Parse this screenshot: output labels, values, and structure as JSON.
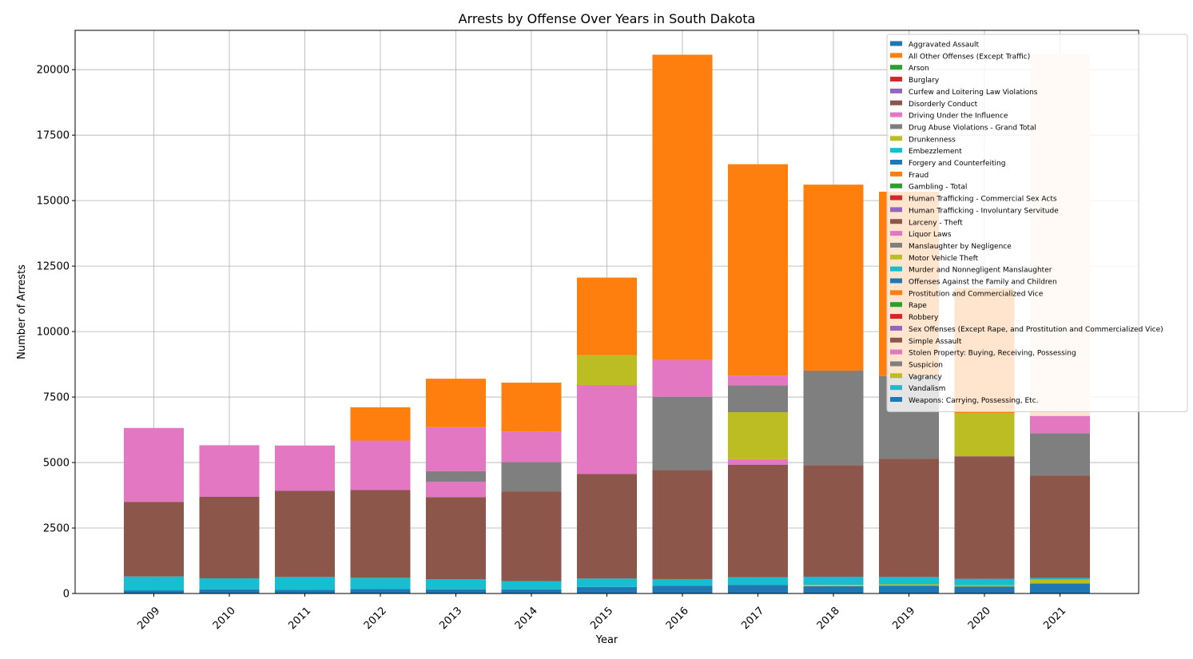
{
  "chart_data": {
    "type": "bar",
    "stacked": true,
    "title": "Arrests by Offense Over Years in South Dakota",
    "xlabel": "Year",
    "ylabel": "Number of Arrests",
    "ylim": [
      0,
      21500
    ],
    "yticks": [
      0,
      2500,
      5000,
      7500,
      10000,
      12500,
      15000,
      17500,
      20000
    ],
    "grid": true,
    "legend_position": "top-right",
    "categories": [
      "2009",
      "2010",
      "2011",
      "2012",
      "2013",
      "2014",
      "2015",
      "2016",
      "2017",
      "2018",
      "2019",
      "2020",
      "2021"
    ],
    "legend": [
      {
        "name": "Aggravated Assault",
        "color": "#1f77b4"
      },
      {
        "name": "All Other Offenses (Except Traffic)",
        "color": "#ff7f0e"
      },
      {
        "name": "Arson",
        "color": "#2ca02c"
      },
      {
        "name": "Burglary",
        "color": "#d62728"
      },
      {
        "name": "Curfew and Loitering Law Violations",
        "color": "#9467bd"
      },
      {
        "name": "Disorderly Conduct",
        "color": "#8c564b"
      },
      {
        "name": "Driving Under the Influence",
        "color": "#e377c2"
      },
      {
        "name": "Drug Abuse Violations - Grand Total",
        "color": "#7f7f7f"
      },
      {
        "name": "Drunkenness",
        "color": "#bcbd22"
      },
      {
        "name": "Embezzlement",
        "color": "#17becf"
      },
      {
        "name": "Forgery and Counterfeiting",
        "color": "#1f77b4"
      },
      {
        "name": "Fraud",
        "color": "#ff7f0e"
      },
      {
        "name": "Gambling - Total",
        "color": "#2ca02c"
      },
      {
        "name": "Human Trafficking - Commercial Sex Acts",
        "color": "#d62728"
      },
      {
        "name": "Human Trafficking - Involuntary Servitude",
        "color": "#9467bd"
      },
      {
        "name": "Larceny - Theft",
        "color": "#8c564b"
      },
      {
        "name": "Liquor Laws",
        "color": "#e377c2"
      },
      {
        "name": "Manslaughter by Negligence",
        "color": "#7f7f7f"
      },
      {
        "name": "Motor Vehicle Theft",
        "color": "#bcbd22"
      },
      {
        "name": "Murder and Nonnegligent Manslaughter",
        "color": "#17becf"
      },
      {
        "name": "Offenses Against the Family and Children",
        "color": "#1f77b4"
      },
      {
        "name": "Prostitution and Commercialized Vice",
        "color": "#ff7f0e"
      },
      {
        "name": "Rape",
        "color": "#2ca02c"
      },
      {
        "name": "Robbery",
        "color": "#d62728"
      },
      {
        "name": "Sex Offenses (Except Rape, and Prostitution and Commercialized Vice)",
        "color": "#9467bd"
      },
      {
        "name": "Simple Assault",
        "color": "#8c564b"
      },
      {
        "name": "Stolen Property: Buying, Receiving, Possessing",
        "color": "#e377c2"
      },
      {
        "name": "Suspicion",
        "color": "#7f7f7f"
      },
      {
        "name": "Vagrancy",
        "color": "#bcbd22"
      },
      {
        "name": "Vandalism",
        "color": "#17becf"
      },
      {
        "name": "Weapons: Carrying, Possessing, Etc.",
        "color": "#1f77b4"
      }
    ],
    "visible_segments": [
      {
        "series": "Aggravated Assault",
        "color": "#1f77b4",
        "values": [
          120,
          160,
          140,
          170,
          160,
          160,
          250,
          300,
          330,
          280,
          300,
          270,
          380
        ]
      },
      {
        "series": "Drunkenness",
        "color": "#bcbd22",
        "values": [
          0,
          0,
          0,
          0,
          0,
          0,
          0,
          0,
          0,
          50,
          50,
          50,
          150
        ]
      },
      {
        "series": "Embezzlement",
        "color": "#17becf",
        "values": [
          530,
          420,
          490,
          430,
          380,
          310,
          320,
          250,
          290,
          310,
          280,
          240,
          60
        ]
      },
      {
        "series": "Disorderly Conduct",
        "color": "#8c564b",
        "values": [
          2850,
          3110,
          3290,
          3350,
          3140,
          3430,
          3990,
          4160,
          4290,
          4260,
          4520,
          4680,
          3910
        ]
      },
      {
        "series": "Driving Under the Influence",
        "color": "#e377c2",
        "values": [
          2820,
          1970,
          1730,
          1890,
          590,
          0,
          3400,
          0,
          220,
          0,
          0,
          0,
          0
        ]
      },
      {
        "series": "Drug Abuse Violations - Grand Total",
        "color": "#7f7f7f",
        "values": [
          0,
          0,
          0,
          0,
          400,
          1120,
          0,
          2800,
          0,
          0,
          0,
          0,
          0
        ]
      },
      {
        "series": "Liquor Laws",
        "color": "#e377c2",
        "values": [
          0,
          0,
          0,
          0,
          1680,
          1160,
          0,
          1400,
          0,
          0,
          0,
          0,
          0
        ]
      },
      {
        "series": "Motor Vehicle Theft",
        "color": "#bcbd22",
        "values": [
          0,
          0,
          0,
          0,
          0,
          0,
          1140,
          0,
          1790,
          0,
          0,
          1640,
          0
        ]
      },
      {
        "series": "Manslaughter by Negligence",
        "color": "#7f7f7f",
        "values": [
          0,
          0,
          0,
          0,
          0,
          0,
          0,
          0,
          1030,
          3610,
          3150,
          0,
          1620
        ]
      },
      {
        "series": "Liquor Laws (upper)",
        "color": "#e377c2",
        "values": [
          0,
          0,
          0,
          0,
          0,
          0,
          0,
          0,
          370,
          0,
          0,
          0,
          660
        ]
      },
      {
        "series": "Fraud",
        "color": "#ff7f0e",
        "values": [
          0,
          0,
          0,
          1270,
          1850,
          1870,
          2960,
          11660,
          8070,
          7100,
          7040,
          4770,
          0
        ]
      },
      {
        "series": "Prostitution and Commercialized Vice",
        "color": "#ffe4cc",
        "values": [
          0,
          0,
          0,
          0,
          0,
          0,
          0,
          0,
          0,
          0,
          0,
          0,
          13800
        ]
      }
    ]
  }
}
